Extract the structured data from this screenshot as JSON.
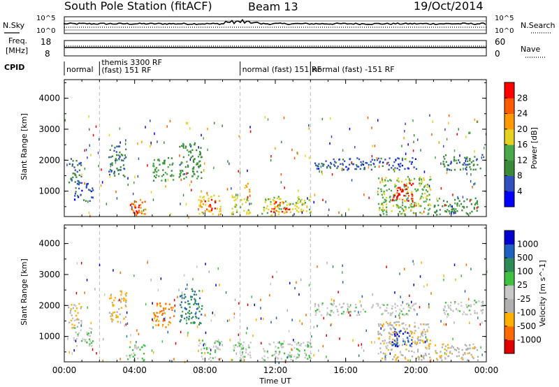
{
  "header": {
    "station": "South Pole Station (fitACF)",
    "beam": "Beam 13",
    "date": "19/Oct/2014"
  },
  "top_panels": {
    "nsky_label": "N.Sky",
    "nsearch_label": "N.Search",
    "nsky_ticks": [
      "10^5",
      "10^0"
    ],
    "nsearch_ticks": [
      "10^5",
      "10^0"
    ],
    "freq_label_line1": "Freq.",
    "freq_label_line2": "[MHz]",
    "freq_ticks": [
      "18",
      "8"
    ],
    "nave_label": "Nave",
    "nave_ticks": [
      "60",
      "0"
    ],
    "cpid_label": "CPID"
  },
  "cpid_segments": [
    {
      "line1": "normal",
      "line2": "",
      "start_hour": 0,
      "end_hour": 2
    },
    {
      "line1": "themis 3300 RF",
      "line2": "(fast) 151 RF",
      "start_hour": 2,
      "end_hour": 10
    },
    {
      "line1": "normal (fast) 151 RF",
      "line2": "",
      "start_hour": 10,
      "end_hour": 14
    },
    {
      "line1": "normal (fast) -151 RF",
      "line2": "",
      "start_hour": 14,
      "end_hour": 24
    }
  ],
  "colors": {
    "power_scale": [
      "#0000ff",
      "#3050c0",
      "#3a8a3a",
      "#4aa84a",
      "#e6d020",
      "#ff9900",
      "#ff5a00",
      "#ff0000"
    ],
    "velocity_scale": [
      "#e00000",
      "#ff6a00",
      "#ffb000",
      "#b0b0b0",
      "#c8c8c8",
      "#40c040",
      "#2e8b57",
      "#2060c0",
      "#0000d0"
    ]
  },
  "chart_data": [
    {
      "type": "heatmap",
      "name": "power",
      "xlabel": "",
      "ylabel": "Slant Range [km]",
      "xlim": [
        0,
        24
      ],
      "ylim": [
        180,
        4600
      ],
      "yticks": [
        "4000",
        "3000",
        "2000",
        "1000"
      ],
      "colorbar_label": "Power [dB]",
      "colorbar_ticks": [
        "28",
        "24",
        "20",
        "16",
        "12",
        "8",
        "4"
      ],
      "colorbar_range": [
        0,
        30
      ],
      "regions": [
        {
          "t0": 0.2,
          "t1": 1.0,
          "r0": 1300,
          "r1": 2100,
          "value": 8
        },
        {
          "t0": 0.5,
          "t1": 1.6,
          "r0": 700,
          "r1": 1300,
          "value": 6
        },
        {
          "t0": 2.5,
          "t1": 3.5,
          "r0": 1500,
          "r1": 2500,
          "value": 8
        },
        {
          "t0": 3.5,
          "t1": 4.6,
          "r0": 250,
          "r1": 750,
          "value": 22
        },
        {
          "t0": 3.8,
          "t1": 4.3,
          "r0": 300,
          "r1": 600,
          "value": 28
        },
        {
          "t0": 5.0,
          "t1": 6.2,
          "r0": 1300,
          "r1": 2100,
          "value": 12
        },
        {
          "t0": 6.5,
          "t1": 7.8,
          "r0": 1400,
          "r1": 2600,
          "value": 10
        },
        {
          "t0": 7.6,
          "t1": 8.9,
          "r0": 250,
          "r1": 900,
          "value": 18
        },
        {
          "t0": 7.9,
          "t1": 8.6,
          "r0": 400,
          "r1": 750,
          "value": 28
        },
        {
          "t0": 9.5,
          "t1": 10.6,
          "r0": 250,
          "r1": 850,
          "value": 16
        },
        {
          "t0": 10.2,
          "t1": 10.5,
          "r0": 1000,
          "r1": 1300,
          "value": 20
        },
        {
          "t0": 11.2,
          "t1": 14.0,
          "r0": 250,
          "r1": 850,
          "value": 16
        },
        {
          "t0": 11.7,
          "t1": 12.8,
          "r0": 350,
          "r1": 700,
          "value": 26
        },
        {
          "t0": 14.2,
          "t1": 20.0,
          "r0": 1700,
          "r1": 2100,
          "value": 6
        },
        {
          "t0": 17.8,
          "t1": 20.8,
          "r0": 250,
          "r1": 1500,
          "value": 14
        },
        {
          "t0": 18.6,
          "t1": 19.8,
          "r0": 700,
          "r1": 1300,
          "value": 28
        },
        {
          "t0": 21.5,
          "t1": 23.8,
          "r0": 1700,
          "r1": 2200,
          "value": 8
        },
        {
          "t0": 21.0,
          "t1": 23.5,
          "r0": 250,
          "r1": 800,
          "value": 10
        }
      ]
    },
    {
      "type": "heatmap",
      "name": "velocity",
      "xlabel": "Time UT",
      "ylabel": "Slant Range [km]",
      "xlim": [
        0,
        24
      ],
      "ylim": [
        180,
        4600
      ],
      "xticks": [
        "00:00",
        "04:00",
        "08:00",
        "12:00",
        "16:00",
        "20:00",
        "00:00"
      ],
      "yticks": [
        "4000",
        "3000",
        "2000",
        "1000"
      ],
      "colorbar_label": "Velocity [m s^-1]",
      "colorbar_ticks": [
        "1000",
        "500",
        "100",
        "25",
        "-25",
        "-100",
        "-500",
        "-1000"
      ],
      "colorbar_range": [
        -1200,
        1200
      ],
      "regions": [
        {
          "t0": 0.2,
          "t1": 1.0,
          "r0": 1300,
          "r1": 2100,
          "value": -300
        },
        {
          "t0": 0.5,
          "t1": 1.6,
          "r0": 700,
          "r1": 1300,
          "value": 80
        },
        {
          "t0": 2.5,
          "t1": 3.5,
          "r0": 1500,
          "r1": 2500,
          "value": -400
        },
        {
          "t0": 3.5,
          "t1": 4.6,
          "r0": 250,
          "r1": 750,
          "value": 80
        },
        {
          "t0": 5.0,
          "t1": 6.2,
          "r0": 1300,
          "r1": 2100,
          "value": -700
        },
        {
          "t0": 6.5,
          "t1": 7.8,
          "r0": 1400,
          "r1": 2600,
          "value": 600
        },
        {
          "t0": 7.6,
          "t1": 8.9,
          "r0": 250,
          "r1": 900,
          "value": 80
        },
        {
          "t0": 9.5,
          "t1": 10.6,
          "r0": 250,
          "r1": 850,
          "value": 70
        },
        {
          "t0": 11.2,
          "t1": 14.0,
          "r0": 250,
          "r1": 850,
          "value": 90
        },
        {
          "t0": 14.2,
          "t1": 20.0,
          "r0": 1700,
          "r1": 2100,
          "value": 0
        },
        {
          "t0": 17.8,
          "t1": 20.8,
          "r0": 250,
          "r1": 1500,
          "value": -300
        },
        {
          "t0": 18.6,
          "t1": 19.8,
          "r0": 700,
          "r1": 1300,
          "value": 900
        },
        {
          "t0": 21.5,
          "t1": 23.8,
          "r0": 1700,
          "r1": 2200,
          "value": 0
        },
        {
          "t0": 21.0,
          "t1": 23.5,
          "r0": 250,
          "r1": 800,
          "value": -300
        }
      ]
    }
  ]
}
